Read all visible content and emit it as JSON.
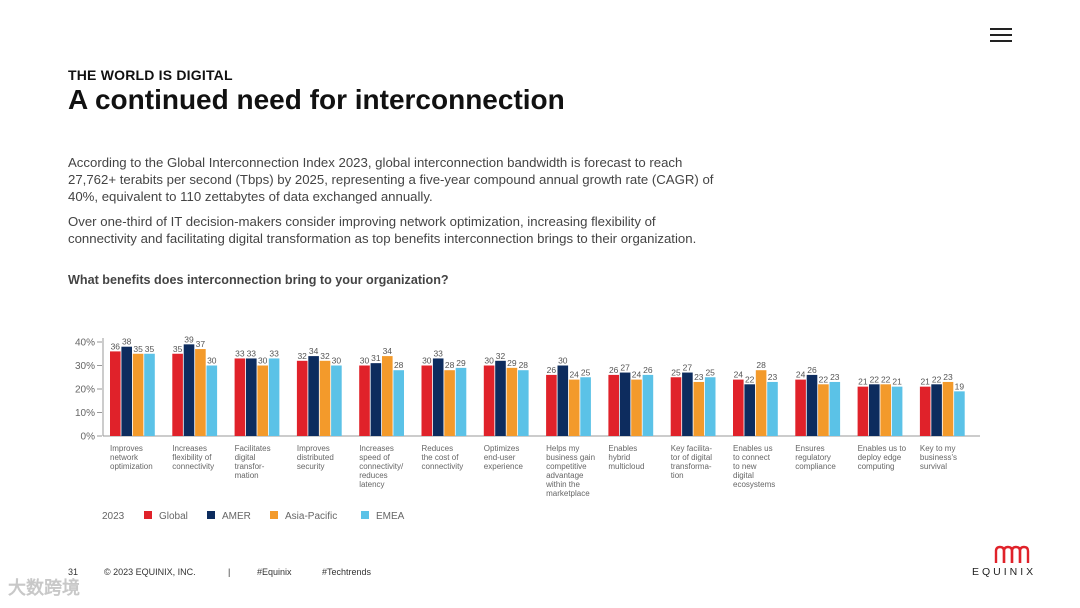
{
  "header": {
    "eyebrow": "THE WORLD IS DIGITAL",
    "title": "A continued need for interconnection"
  },
  "body": {
    "paragraph1": "According to the Global Interconnection Index 2023, global interconnection bandwidth is forecast to reach 27,762+ terabits per second (Tbps) by 2025, representing a five-year compound annual growth rate (CAGR) of 40%, equivalent to 110 zettabytes of data exchanged annually.",
    "paragraph2": "Over one-third of IT decision-makers consider improving network optimization, increasing flexibility of connectivity and facilitating digital transformation as top benefits interconnection brings to their organization.",
    "question": "What benefits does interconnection bring to your organization?"
  },
  "chart_data": {
    "type": "bar",
    "ylim": [
      0,
      40
    ],
    "yticks": [
      "0%",
      "10%",
      "20%",
      "30%",
      "40%"
    ],
    "legend_title": "2023",
    "legend_position": "bottom-left",
    "grid": false,
    "categories": [
      [
        "Improves",
        "network",
        "optimization"
      ],
      [
        "Increases",
        "flexibility of",
        "connectivity"
      ],
      [
        "Facilitates",
        "digital",
        "transfor-",
        "mation"
      ],
      [
        "Improves",
        "distributed",
        "security"
      ],
      [
        "Increases",
        "speed of",
        "connectivity/",
        "reduces",
        "latency"
      ],
      [
        "Reduces",
        "the cost of",
        "connectivity"
      ],
      [
        "Optimizes",
        "end-user",
        "experience"
      ],
      [
        "Helps my",
        "business gain",
        "competitive",
        "advantage",
        "within the",
        "marketplace"
      ],
      [
        "Enables",
        "hybrid",
        "multicloud"
      ],
      [
        "Key facilita-",
        "tor of digital",
        "transforma-",
        "tion"
      ],
      [
        "Enables us",
        "to connect",
        "to new",
        "digital",
        "ecosystems"
      ],
      [
        "Ensures",
        "regulatory",
        "compliance"
      ],
      [
        "Enables us to",
        "deploy edge",
        "computing"
      ],
      [
        "Key to my",
        "business's",
        "survival"
      ]
    ],
    "series": [
      {
        "name": "Global",
        "color": "#e0222a",
        "values": [
          36,
          35,
          33,
          32,
          30,
          30,
          30,
          26,
          26,
          25,
          24,
          24,
          21,
          21
        ]
      },
      {
        "name": "AMER",
        "color": "#0d2c5e",
        "values": [
          38,
          39,
          33,
          34,
          31,
          33,
          32,
          30,
          27,
          27,
          22,
          26,
          22,
          22
        ]
      },
      {
        "name": "Asia-Pacific",
        "color": "#f39a2b",
        "values": [
          35,
          37,
          30,
          32,
          34,
          28,
          29,
          24,
          24,
          23,
          28,
          22,
          22,
          23
        ]
      },
      {
        "name": "EMEA",
        "color": "#5bc2e7",
        "values": [
          35,
          30,
          33,
          30,
          28,
          29,
          28,
          25,
          26,
          25,
          23,
          23,
          21,
          19
        ]
      }
    ]
  },
  "footer": {
    "page_number": "31",
    "copyright": "© 2023 EQUINIX, INC.",
    "separator": "|",
    "hashtag1": "#Equinix",
    "hashtag2": "#Techtrends"
  },
  "watermark": "大数跨境",
  "logo": {
    "text": "EQUINIX",
    "color": "#e0222a"
  }
}
